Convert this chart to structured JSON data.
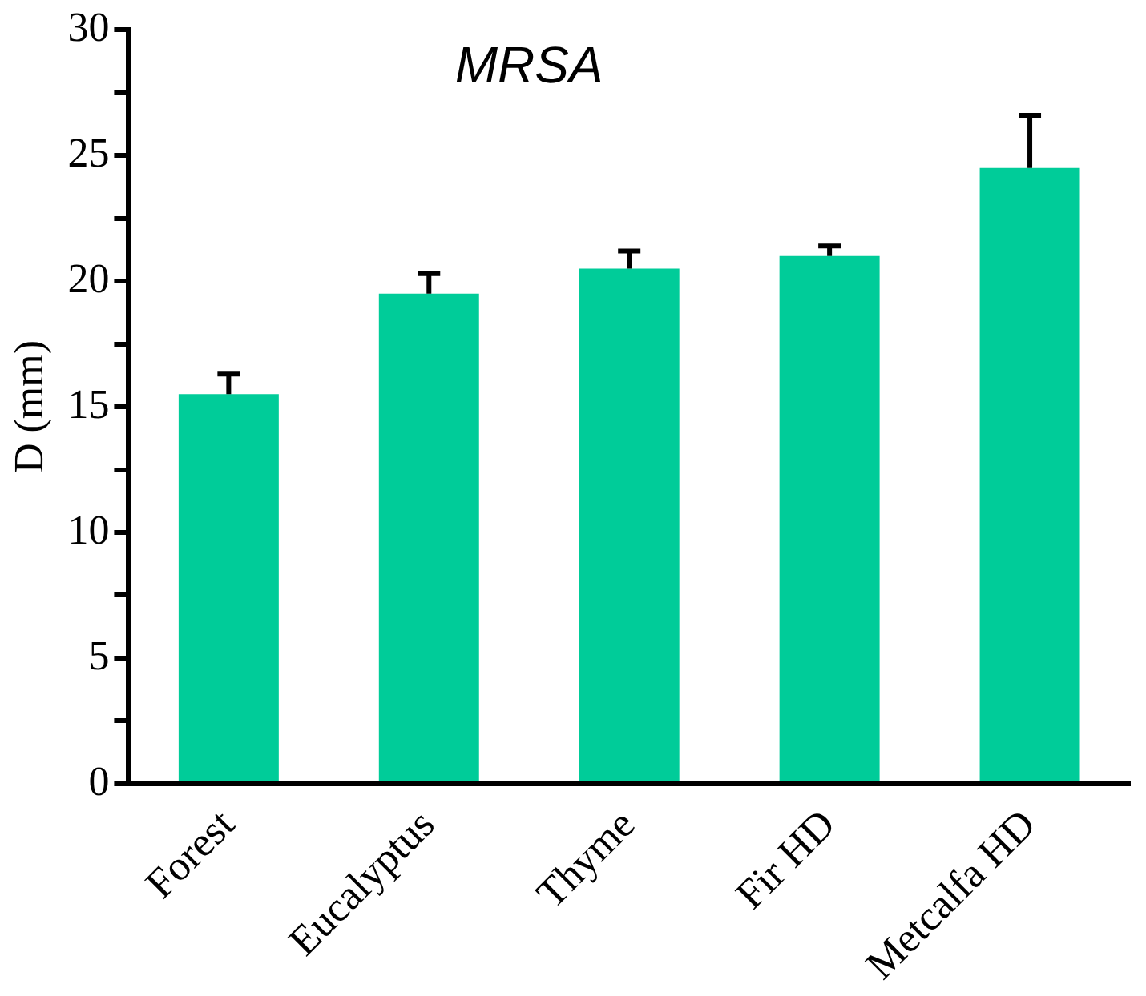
{
  "chart_data": {
    "type": "bar",
    "title": "MRSA",
    "ylabel": "D (mm)",
    "categories": [
      "Forest",
      "Eucalyptus",
      "Thyme",
      "Fir HD",
      "Metcalfa HD"
    ],
    "values": [
      15.5,
      19.5,
      20.5,
      21,
      24.5
    ],
    "errors": [
      [
        15.5,
        16.3
      ],
      [
        19.5,
        20.3
      ],
      [
        20.5,
        21.2
      ],
      [
        21,
        21.4
      ],
      [
        24.5,
        26.6
      ]
    ],
    "color": "#00cc99",
    "ylim": [
      0,
      30
    ],
    "yticks": [
      0,
      {
        "value": 2.5,
        "label": null
      },
      5,
      {
        "value": 7.5,
        "label": null
      },
      10,
      {
        "value": 12.5,
        "label": null
      },
      15,
      {
        "value": 17.5,
        "label": null
      },
      20,
      {
        "value": 22.5,
        "label": null
      },
      25,
      {
        "value": 27.5,
        "label": null
      },
      30
    ],
    "grid": false,
    "legend": false
  }
}
